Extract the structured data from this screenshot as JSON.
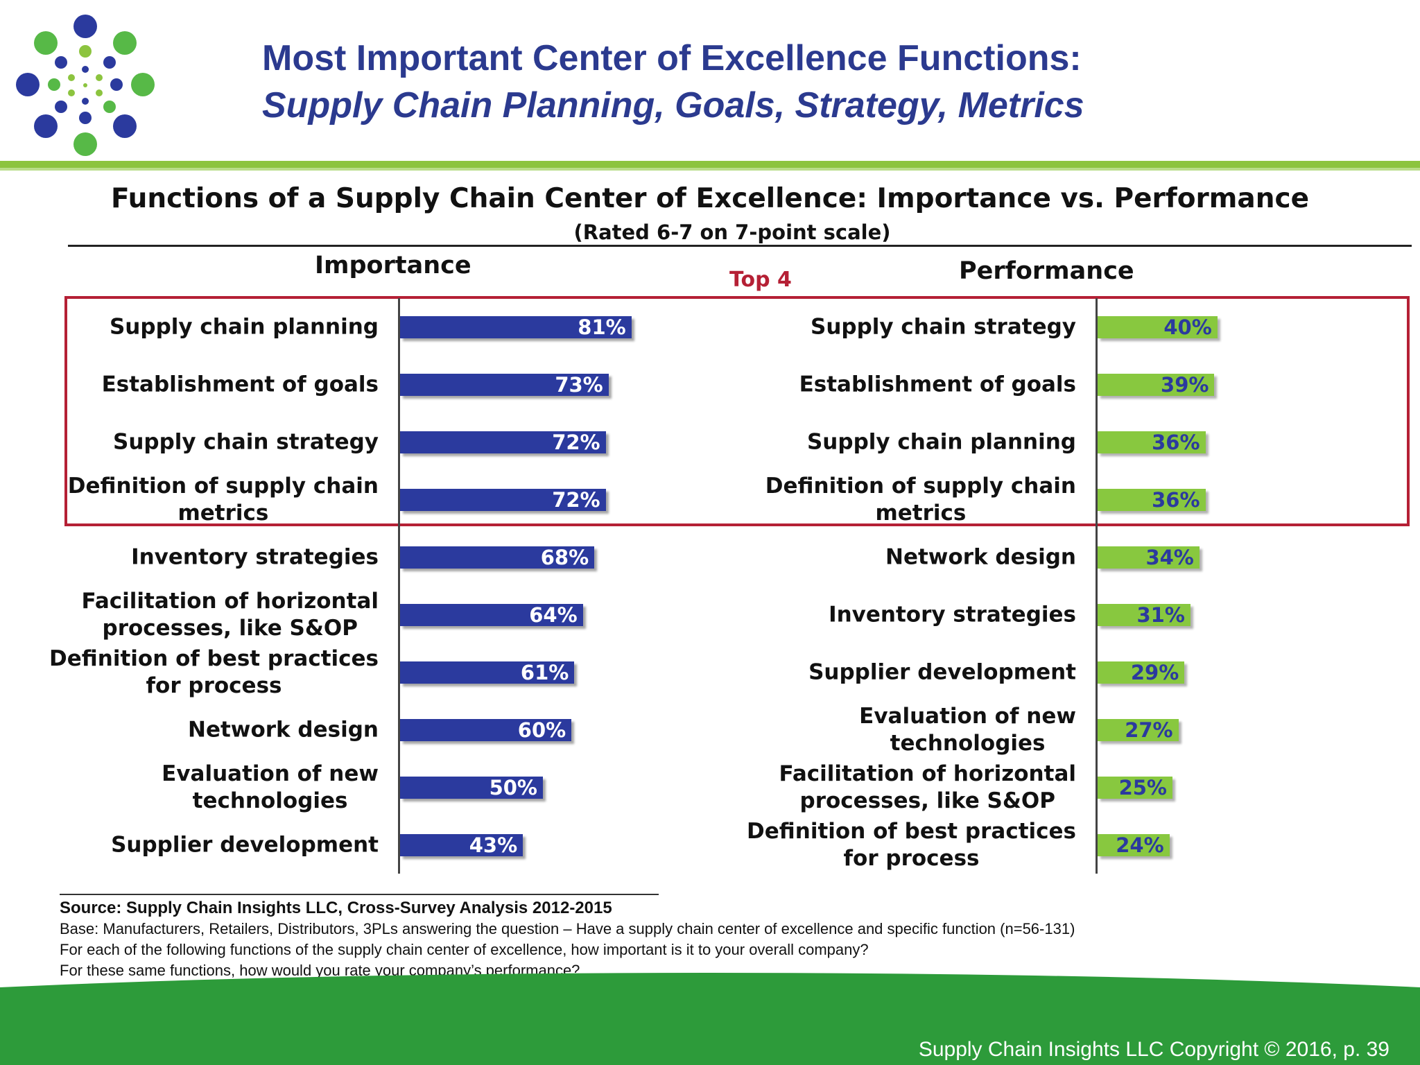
{
  "slide": {
    "title_line1": "Most Important Center of Excellence Functions:",
    "title_line2": "Supply Chain Planning, Goals, Strategy, Metrics",
    "copyright": "Supply Chain Insights LLC Copyright © 2016, p. 39"
  },
  "colors": {
    "title": "#2b3a8f",
    "importance_bar": "#2b3a9e",
    "performance_bar": "#88c83f",
    "highlight_box": "#b52035",
    "accent_green": "#8cc43f"
  },
  "chart_data": {
    "type": "bar",
    "orientation": "horizontal",
    "title": "Functions of a Supply Chain Center of Excellence:  Importance vs. Performance",
    "subtitle": "(Rated 6-7 on 7-point scale)",
    "highlight_label": "Top 4",
    "highlight_count": 4,
    "panels": [
      {
        "name": "Importance",
        "unit": "%",
        "categories": [
          "Supply chain planning",
          "Establishment of goals",
          "Supply chain strategy",
          "Definition of supply chain|metrics",
          "Inventory strategies",
          "Facilitation of horizontal|processes, like S&OP",
          "Definition of best practices|for process",
          "Network design",
          "Evaluation of new|technologies",
          "Supplier development"
        ],
        "values": [
          81,
          73,
          72,
          72,
          68,
          64,
          61,
          60,
          50,
          43
        ],
        "labels": [
          "81%",
          "73%",
          "72%",
          "72%",
          "68%",
          "64%",
          "61%",
          "60%",
          "50%",
          "43%"
        ]
      },
      {
        "name": "Performance",
        "unit": "%",
        "categories": [
          "Supply chain strategy",
          "Establishment of goals",
          "Supply chain planning",
          "Definition of supply chain|metrics",
          "Network design",
          "Inventory strategies",
          "Supplier development",
          "Evaluation of new|technologies",
          "Facilitation of horizontal|processes, like S&OP",
          "Definition of best practices|for process"
        ],
        "values": [
          40,
          39,
          36,
          36,
          34,
          31,
          29,
          27,
          25,
          24
        ],
        "labels": [
          "40%",
          "39%",
          "36%",
          "36%",
          "34%",
          "31%",
          "29%",
          "27%",
          "25%",
          "24%"
        ]
      }
    ]
  },
  "source": {
    "line1": "Source:  Supply Chain Insights LLC, Cross-Survey Analysis 2012-2015",
    "line2": "Base:  Manufacturers, Retailers, Distributors, 3PLs answering the question – Have a supply chain center of excellence and specific function (n=56-131)",
    "line3": "For each of the following functions of the supply chain center of excellence, how important is it to your overall company?",
    "line4": "For these same functions, how would you rate your company’s performance?"
  }
}
